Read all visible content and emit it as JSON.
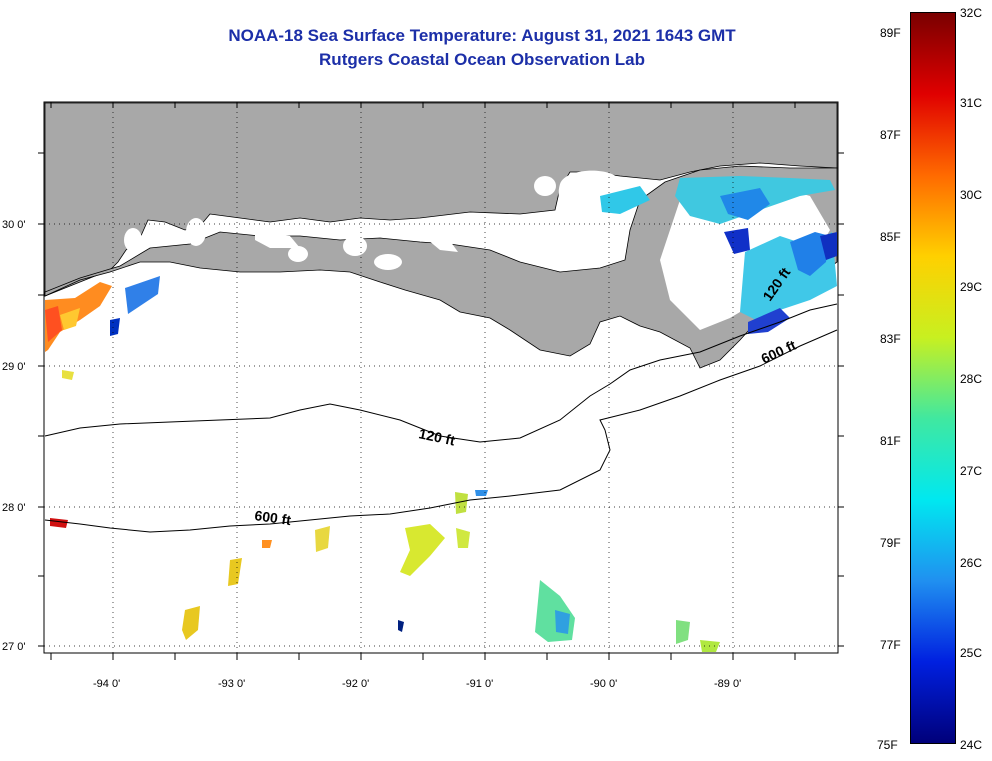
{
  "header": {
    "title": "NOAA-18 Sea Surface Temperature:  August 31, 2021 1643 GMT",
    "subtitle": "Rutgers Coastal Ocean Observation Lab"
  },
  "map": {
    "lat_labels": [
      "30 0'",
      "29 0'",
      "28 0'",
      "27 0'"
    ],
    "lon_labels": [
      "-94 0'",
      "-93 0'",
      "-92 0'",
      "-91 0'",
      "-90 0'",
      "-89 0'"
    ],
    "contours": {
      "shelf_label": "120 ft",
      "deep_label": "600 ft"
    },
    "colors": {
      "land": "#a8a8a8",
      "ocean": "#ffffff",
      "cloud": "#ffffff"
    }
  },
  "colorbar": {
    "celsius": [
      "32C",
      "31C",
      "30C",
      "29C",
      "28C",
      "27C",
      "26C",
      "25C",
      "24C"
    ],
    "fahrenheit": [
      "89F",
      "87F",
      "85F",
      "83F",
      "81F",
      "79F",
      "77F",
      "75F"
    ],
    "stops": [
      "#7a0000",
      "#e00000",
      "#ff6a00",
      "#ffd000",
      "#c8f020",
      "#40e8a0",
      "#00e8f0",
      "#2090f0",
      "#0020e0",
      "#00007a"
    ]
  }
}
